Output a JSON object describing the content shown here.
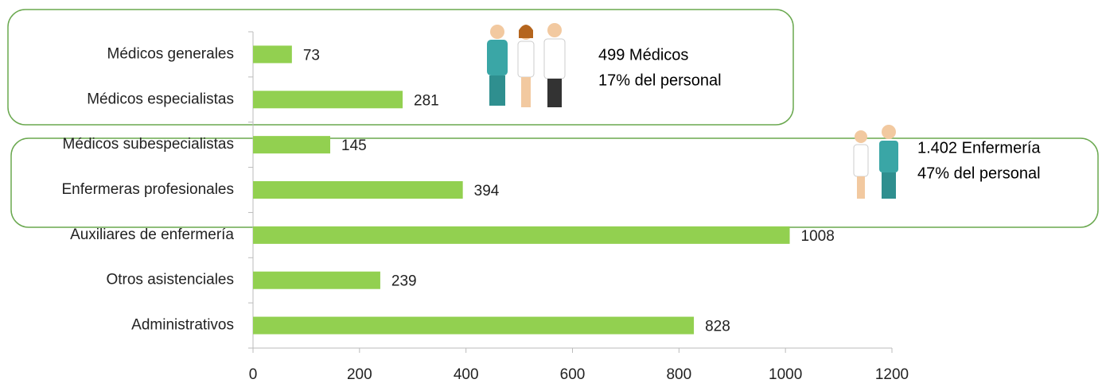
{
  "chart_data": {
    "type": "bar",
    "orientation": "horizontal",
    "categories": [
      "Médicos generales",
      "Médicos especialistas",
      "Médicos subespecialistas",
      "Enfermeras profesionales",
      "Auxiliares de enfermería",
      "Otros asistenciales",
      "Administrativos"
    ],
    "values": [
      73,
      281,
      145,
      394,
      1008,
      239,
      828
    ],
    "color": "#92d050",
    "xlim": [
      0,
      1200
    ],
    "xticks": [
      0,
      200,
      400,
      600,
      800,
      1000,
      1200
    ],
    "annotations": [
      "499 Médicos",
      "17% del personal",
      "1.402 Enfermería",
      "47% del personal"
    ]
  }
}
